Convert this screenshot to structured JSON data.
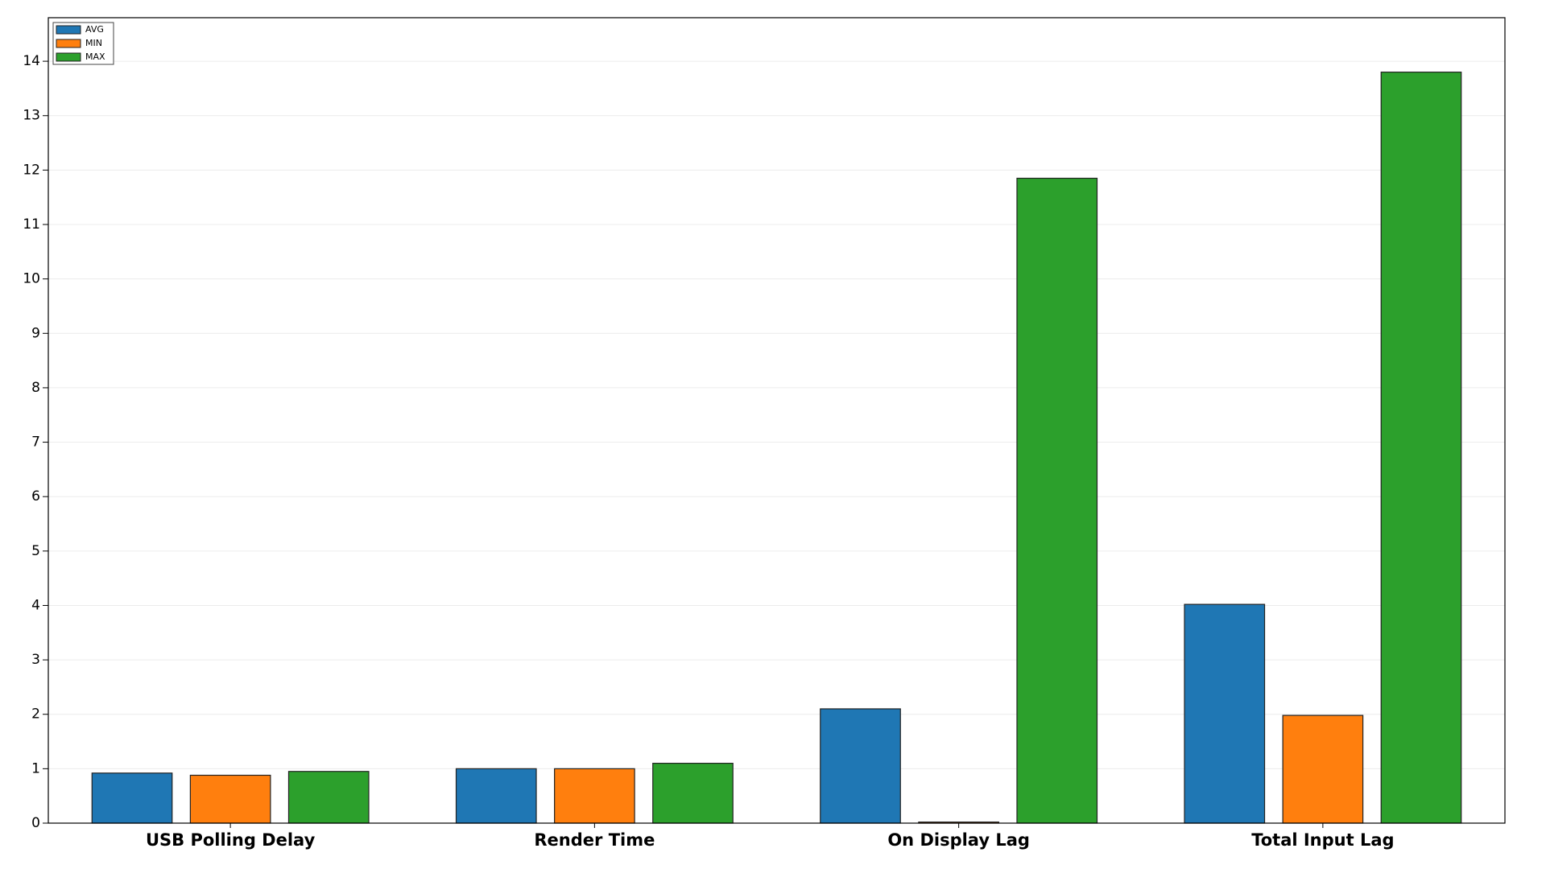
{
  "chart_data": {
    "type": "bar",
    "categories": [
      "USB Polling Delay",
      "Render Time",
      "On Display Lag",
      "Total Input Lag"
    ],
    "series": [
      {
        "name": "AVG",
        "color": "#1f77b4",
        "values": [
          0.92,
          1.0,
          2.1,
          4.02
        ]
      },
      {
        "name": "MIN",
        "color": "#ff7f0e",
        "values": [
          0.88,
          1.0,
          0.02,
          1.98
        ]
      },
      {
        "name": "MAX",
        "color": "#2ca02c",
        "values": [
          0.95,
          1.1,
          11.85,
          13.8
        ]
      }
    ],
    "ylim": [
      0,
      14.8
    ],
    "yticks": [
      0,
      1,
      2,
      3,
      4,
      5,
      6,
      7,
      8,
      9,
      10,
      11,
      12,
      13,
      14
    ],
    "grid": true,
    "legend": "upper-left"
  }
}
